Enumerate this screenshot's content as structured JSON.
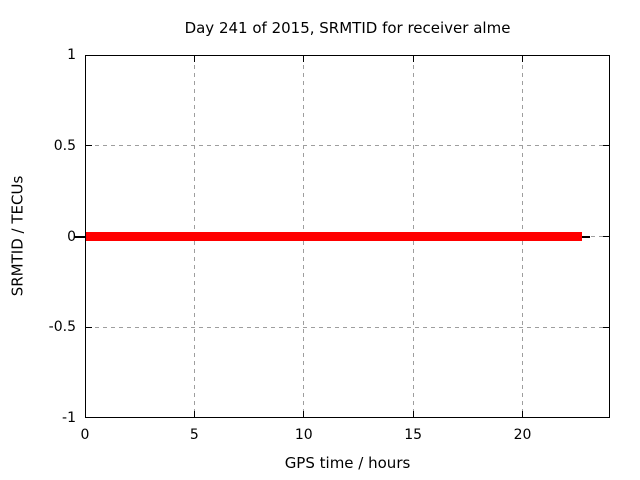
{
  "chart_data": {
    "type": "line",
    "title": "Day 241 of 2015, SRMTID for receiver alme",
    "xlabel": "GPS time / hours",
    "ylabel": "SRMTID / TECUs",
    "xlim": [
      0,
      24
    ],
    "ylim": [
      -1,
      1
    ],
    "xticks": [
      0,
      5,
      10,
      15,
      20
    ],
    "yticks": [
      -1,
      -0.5,
      0,
      0.5,
      1
    ],
    "grid": true,
    "grid_style": "dashed",
    "legend_position": "none",
    "background_color": "#ffffff",
    "border_color": "#000000",
    "grid_color": "#9e9e9e",
    "series": [
      {
        "name": "zero-baseline",
        "type": "line",
        "color": "#000000",
        "line_width": 2,
        "x": [
          -0.5,
          23.1
        ],
        "y": [
          0,
          0
        ]
      },
      {
        "name": "SRMTID",
        "type": "line",
        "color": "#ff0000",
        "line_width": 9,
        "x": [
          0,
          22.7
        ],
        "y": [
          0,
          0
        ]
      }
    ]
  }
}
